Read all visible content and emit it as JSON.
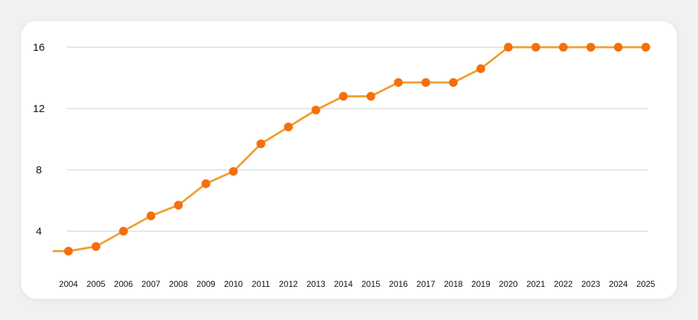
{
  "colors": {
    "line": "#f0a030",
    "marker": "#f56f0c",
    "grid": "#d6d6d6",
    "card": "#ffffff",
    "background": "#f1f1f3"
  },
  "chart_data": {
    "type": "line",
    "title": "",
    "xlabel": "",
    "ylabel": "",
    "grid": true,
    "ylim": [
      1.5,
      16
    ],
    "yticks": [
      4,
      8,
      12,
      16
    ],
    "categories": [
      "2004",
      "2005",
      "2006",
      "2007",
      "2008",
      "2009",
      "2010",
      "2011",
      "2012",
      "2013",
      "2014",
      "2015",
      "2016",
      "2017",
      "2018",
      "2019",
      "2020",
      "2021",
      "2022",
      "2023",
      "2024",
      "2025"
    ],
    "series": [
      {
        "values": [
          2.7,
          3.0,
          4.0,
          5.0,
          5.7,
          7.1,
          7.9,
          9.7,
          10.8,
          11.9,
          12.8,
          12.8,
          13.7,
          13.7,
          13.7,
          14.6,
          16,
          16,
          16,
          16,
          16,
          16
        ]
      }
    ]
  }
}
